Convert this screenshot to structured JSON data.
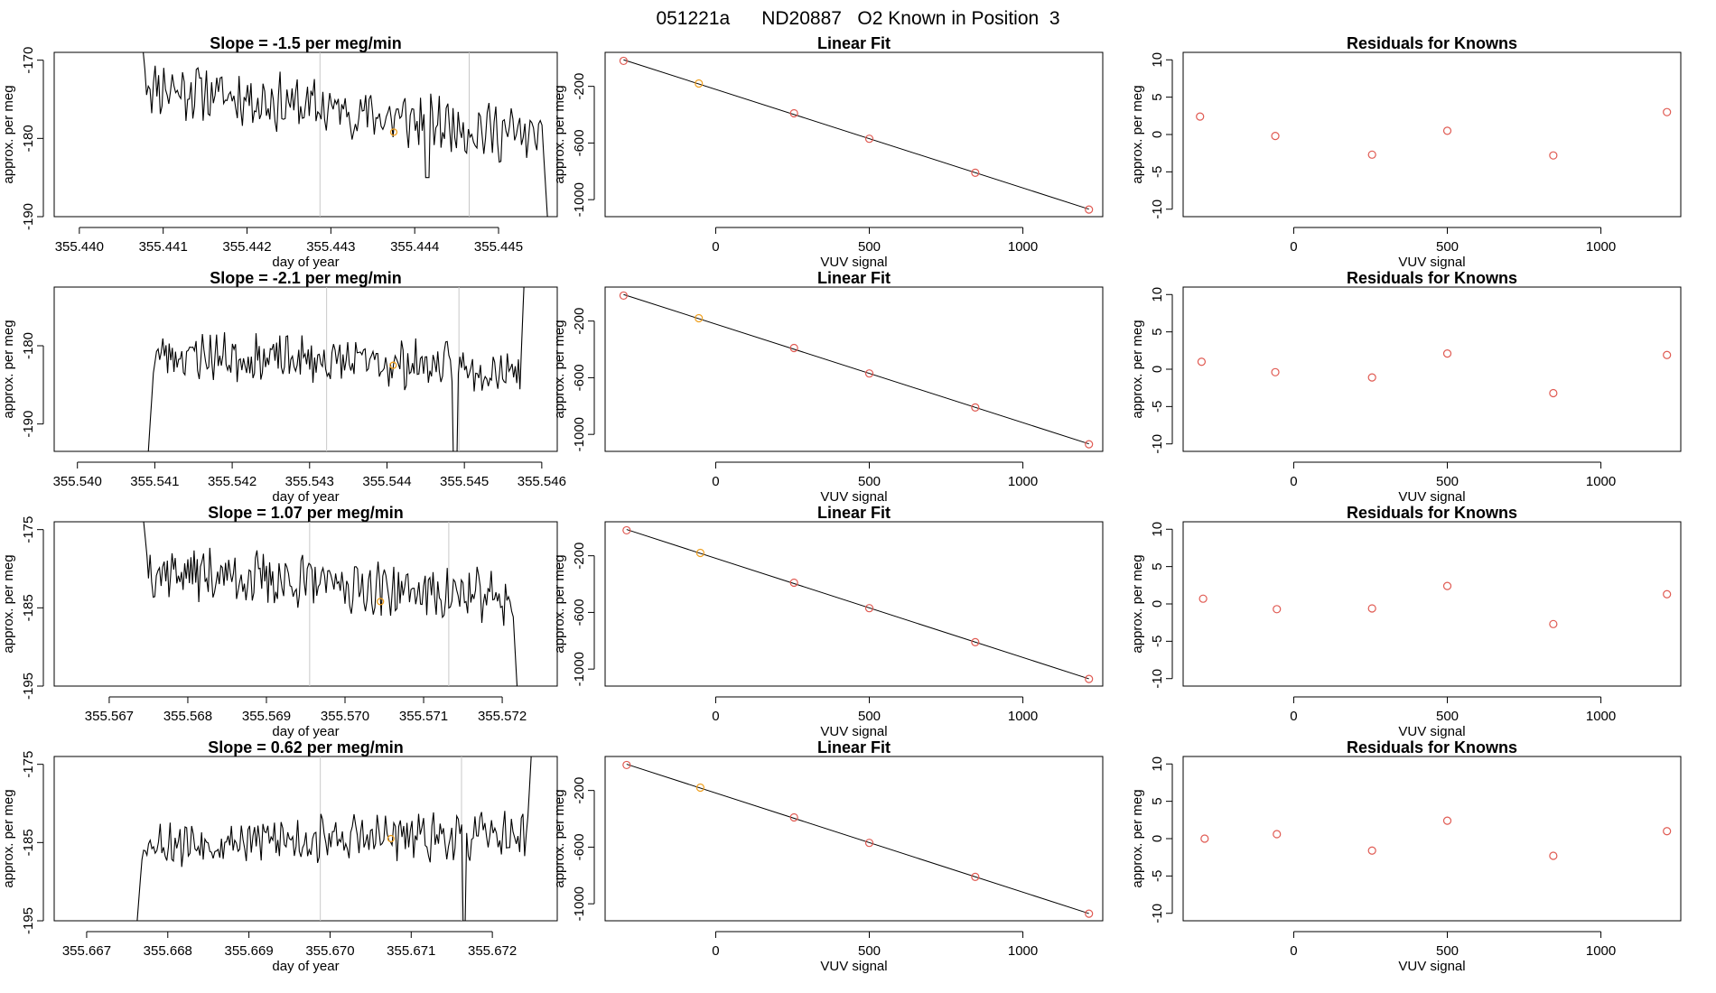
{
  "title": "051221a      ND20887   O2 Known in Position  3",
  "colors": {
    "line": "#000000",
    "point": "#e05a52",
    "highlight": "#f0a020",
    "vline": "#c8c8c8"
  },
  "rows": [
    {
      "trace": {
        "type": "line",
        "title": "Slope =  -1.5  per meg/min",
        "xlabel": "day of year",
        "ylabel": "approx. per meg",
        "xlim": [
          355.4397,
          355.4457
        ],
        "ylim": [
          -190,
          -169
        ],
        "xticks": [
          355.44,
          355.441,
          355.442,
          355.443,
          355.444,
          355.445
        ],
        "xtick_labels": [
          "355.440",
          "355.441",
          "355.442",
          "355.443",
          "355.444",
          "355.445"
        ],
        "yticks": [
          -190,
          -180,
          -170
        ],
        "ytick_labels": [
          "-190",
          "-180",
          "-170"
        ],
        "vlines": [
          355.44287,
          355.44465
        ],
        "highlight": {
          "x": 355.44375,
          "y": -179.2
        },
        "seed": 11,
        "segment": {
          "start": 355.4407,
          "end": 355.4456,
          "y_start": -162,
          "level_from": -173,
          "level_to": -180,
          "noise": 3,
          "dips": [
            [
              355.44415,
              -185
            ]
          ],
          "end_y": -193
        }
      },
      "fit": {
        "type": "scatter",
        "title": "Linear Fit",
        "xlabel": "VUV signal",
        "ylabel": "approx. per meg",
        "xlim": [
          -360,
          1260
        ],
        "ylim": [
          -1120,
          40
        ],
        "xticks": [
          0,
          500,
          1000
        ],
        "xtick_labels": [
          "0",
          "500",
          "1000"
        ],
        "yticks": [
          -1000,
          -600,
          -200
        ],
        "ytick_labels": [
          "-1000",
          "-600",
          "-200"
        ],
        "x": [
          -300,
          -55,
          255,
          500,
          845,
          1215
        ],
        "y": [
          -20,
          -180,
          -390,
          -570,
          -810,
          -1070
        ],
        "highlight_index": 1
      },
      "resid": {
        "type": "scatter",
        "title": "Residuals for Knowns",
        "xlabel": "VUV signal",
        "ylabel": "approx. per meg",
        "xlim": [
          -360,
          1260
        ],
        "ylim": [
          -11,
          11
        ],
        "xticks": [
          0,
          500,
          1000
        ],
        "xtick_labels": [
          "0",
          "500",
          "1000"
        ],
        "yticks": [
          -10,
          -5,
          0,
          5,
          10
        ],
        "ytick_labels": [
          "-10",
          "-5",
          "0",
          "5",
          "10"
        ],
        "x": [
          -305,
          -60,
          255,
          500,
          845,
          1215
        ],
        "y": [
          2.4,
          -0.2,
          -2.7,
          0.5,
          -2.8,
          3.0
        ]
      }
    },
    {
      "trace": {
        "type": "line",
        "title": "Slope =  -2.1  per meg/min",
        "xlabel": "day of year",
        "ylabel": "approx. per meg",
        "xlim": [
          355.5397,
          355.5462
        ],
        "ylim": [
          -193.5,
          -172.5
        ],
        "xticks": [
          355.54,
          355.541,
          355.542,
          355.543,
          355.544,
          355.545,
          355.546
        ],
        "xtick_labels": [
          "355.540",
          "355.541",
          "355.542",
          "355.543",
          "355.544",
          "355.545",
          "355.546"
        ],
        "yticks": [
          -190,
          -180
        ],
        "ytick_labels": [
          "-190",
          "-180"
        ],
        "vlines": [
          355.54322,
          355.54493
        ],
        "highlight": {
          "x": 355.54408,
          "y": -182.5
        },
        "seed": 23,
        "segment": {
          "start": 355.5409,
          "end": 355.5458,
          "y_start": -196,
          "level_from": -181,
          "level_to": -183,
          "noise": 2.5,
          "dips": [
            [
              355.54488,
              -196
            ]
          ],
          "end_y": -165
        }
      },
      "fit": {
        "type": "scatter",
        "title": "Linear Fit",
        "xlabel": "VUV signal",
        "ylabel": "approx. per meg",
        "xlim": [
          -360,
          1260
        ],
        "ylim": [
          -1120,
          40
        ],
        "xticks": [
          0,
          500,
          1000
        ],
        "xtick_labels": [
          "0",
          "500",
          "1000"
        ],
        "yticks": [
          -1000,
          -600,
          -200
        ],
        "ytick_labels": [
          "-1000",
          "-600",
          "-200"
        ],
        "x": [
          -300,
          -55,
          255,
          500,
          845,
          1215
        ],
        "y": [
          -20,
          -180,
          -390,
          -570,
          -810,
          -1070
        ],
        "highlight_index": 1
      },
      "resid": {
        "type": "scatter",
        "title": "Residuals for Knowns",
        "xlabel": "VUV signal",
        "ylabel": "approx. per meg",
        "xlim": [
          -360,
          1260
        ],
        "ylim": [
          -11,
          11
        ],
        "xticks": [
          0,
          500,
          1000
        ],
        "xtick_labels": [
          "0",
          "500",
          "1000"
        ],
        "yticks": [
          -10,
          -5,
          0,
          5,
          10
        ],
        "ytick_labels": [
          "-10",
          "-5",
          "0",
          "5",
          "10"
        ],
        "x": [
          -300,
          -60,
          255,
          500,
          845,
          1215
        ],
        "y": [
          1.0,
          -0.4,
          -1.1,
          2.1,
          -3.2,
          1.9
        ]
      }
    },
    {
      "trace": {
        "type": "line",
        "title": "Slope =  1.07  per meg/min",
        "xlabel": "day of year",
        "ylabel": "approx. per meg",
        "xlim": [
          355.5663,
          355.5727
        ],
        "ylim": [
          -195,
          -174
        ],
        "xticks": [
          355.567,
          355.568,
          355.569,
          355.57,
          355.571,
          355.572
        ],
        "xtick_labels": [
          "355.567",
          "355.568",
          "355.569",
          "355.570",
          "355.571",
          "355.572"
        ],
        "yticks": [
          -195,
          -185,
          -175
        ],
        "ytick_labels": [
          "-195",
          "-185",
          "-175"
        ],
        "vlines": [
          355.56955,
          355.57132
        ],
        "highlight": {
          "x": 355.57045,
          "y": -184.2
        },
        "seed": 37,
        "segment": {
          "start": 355.5674,
          "end": 355.5722,
          "y_start": -170,
          "level_from": -180,
          "level_to": -184,
          "noise": 2.8,
          "dips": [],
          "end_y": -197
        }
      },
      "fit": {
        "type": "scatter",
        "title": "Linear Fit",
        "xlabel": "VUV signal",
        "ylabel": "approx. per meg",
        "xlim": [
          -360,
          1260
        ],
        "ylim": [
          -1120,
          40
        ],
        "xticks": [
          0,
          500,
          1000
        ],
        "xtick_labels": [
          "0",
          "500",
          "1000"
        ],
        "yticks": [
          -1000,
          -600,
          -200
        ],
        "ytick_labels": [
          "-1000",
          "-600",
          "-200"
        ],
        "x": [
          -290,
          -50,
          255,
          500,
          845,
          1215
        ],
        "y": [
          -20,
          -180,
          -390,
          -570,
          -810,
          -1070
        ],
        "highlight_index": 1
      },
      "resid": {
        "type": "scatter",
        "title": "Residuals for Knowns",
        "xlabel": "VUV signal",
        "ylabel": "approx. per meg",
        "xlim": [
          -360,
          1260
        ],
        "ylim": [
          -11,
          11
        ],
        "xticks": [
          0,
          500,
          1000
        ],
        "xtick_labels": [
          "0",
          "500",
          "1000"
        ],
        "yticks": [
          -10,
          -5,
          0,
          5,
          10
        ],
        "ytick_labels": [
          "-10",
          "-5",
          "0",
          "5",
          "10"
        ],
        "x": [
          -295,
          -55,
          255,
          500,
          845,
          1215
        ],
        "y": [
          0.7,
          -0.7,
          -0.6,
          2.4,
          -2.7,
          1.3
        ]
      }
    },
    {
      "trace": {
        "type": "line",
        "title": "Slope =  0.62  per meg/min",
        "xlabel": "day of year",
        "ylabel": "approx. per meg",
        "xlim": [
          355.6666,
          355.6728
        ],
        "ylim": [
          -195,
          -174
        ],
        "xticks": [
          355.667,
          355.668,
          355.669,
          355.67,
          355.671,
          355.672
        ],
        "xtick_labels": [
          "355.667",
          "355.668",
          "355.669",
          "355.670",
          "355.671",
          "355.672"
        ],
        "yticks": [
          -195,
          -185,
          -175
        ],
        "ytick_labels": [
          "-195",
          "-185",
          "-175"
        ],
        "vlines": [
          355.66988,
          355.67162
        ],
        "highlight": {
          "x": 355.67075,
          "y": -184.5
        },
        "seed": 53,
        "segment": {
          "start": 355.6676,
          "end": 355.6725,
          "y_start": -198,
          "level_from": -185,
          "level_to": -184,
          "noise": 2.5,
          "dips": [
            [
              355.67165,
              -197
            ]
          ],
          "end_y": -170
        }
      },
      "fit": {
        "type": "scatter",
        "title": "Linear Fit",
        "xlabel": "VUV signal",
        "ylabel": "approx. per meg",
        "xlim": [
          -360,
          1260
        ],
        "ylim": [
          -1120,
          40
        ],
        "xticks": [
          0,
          500,
          1000
        ],
        "xtick_labels": [
          "0",
          "500",
          "1000"
        ],
        "yticks": [
          -1000,
          -600,
          -200
        ],
        "ytick_labels": [
          "-1000",
          "-600",
          "-200"
        ],
        "x": [
          -290,
          -50,
          255,
          500,
          845,
          1215
        ],
        "y": [
          -20,
          -180,
          -390,
          -570,
          -810,
          -1070
        ],
        "highlight_index": 1
      },
      "resid": {
        "type": "scatter",
        "title": "Residuals for Knowns",
        "xlabel": "VUV signal",
        "ylabel": "approx. per meg",
        "xlim": [
          -360,
          1260
        ],
        "ylim": [
          -11,
          11
        ],
        "xticks": [
          0,
          500,
          1000
        ],
        "xtick_labels": [
          "0",
          "500",
          "1000"
        ],
        "yticks": [
          -10,
          -5,
          0,
          5,
          10
        ],
        "ytick_labels": [
          "-10",
          "-5",
          "0",
          "5",
          "10"
        ],
        "x": [
          -290,
          -55,
          255,
          500,
          845,
          1215
        ],
        "y": [
          0.0,
          0.6,
          -1.6,
          2.4,
          -2.3,
          1.0
        ]
      }
    }
  ]
}
